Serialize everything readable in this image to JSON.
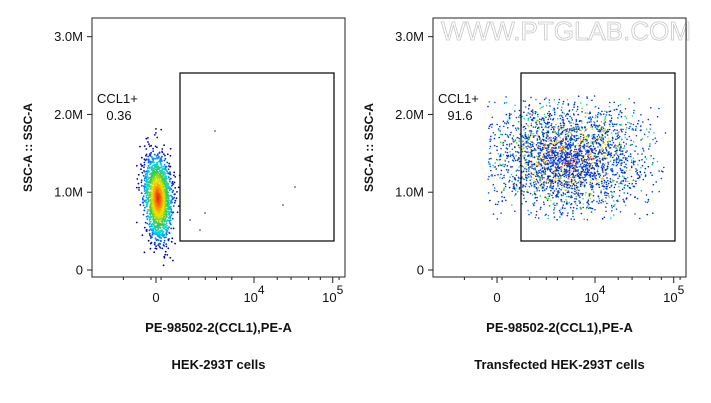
{
  "chart_data": [
    {
      "type": "scatter",
      "title": "HEK-293T cells",
      "x_label": "PE-98502-2(CCL1),PE-A",
      "y_label": "SSC-A :: SSC-A",
      "gate_label": "CCL1+",
      "gate_value": 0.36,
      "xlim": [
        -3390,
        142200
      ],
      "ylim": [
        -90000,
        3240000
      ],
      "xticks": [
        0,
        {
          "value": 10000,
          "label": "10",
          "superscript": "4"
        },
        {
          "value": 100000,
          "label": "10",
          "superscript": "5"
        }
      ],
      "yticks": [
        0,
        {
          "value": 1000000,
          "label": "1.0M"
        },
        {
          "value": 2000000,
          "label": "2.0M"
        },
        {
          "value": 3000000,
          "label": "3.0M"
        }
      ]
    },
    {
      "type": "scatter",
      "title": "Transfected HEK-293T cells",
      "x_label": "PE-98502-2(CCL1),PE-A",
      "y_label": "SSC-A :: SSC-A",
      "gate_label": "CCL1+",
      "gate_value": 91.6,
      "watermark": "WWW.PTGLAB.COM",
      "xlim": [
        -3390,
        142200
      ],
      "ylim": [
        -90000,
        3240000
      ],
      "xticks": [
        0,
        {
          "value": 10000,
          "label": "10",
          "superscript": "4"
        },
        {
          "value": 100000,
          "label": "10",
          "superscript": "5"
        }
      ],
      "yticks": [
        0,
        {
          "value": 1000000,
          "label": "1.0M"
        },
        {
          "value": 2000000,
          "label": "2.0M"
        },
        {
          "value": 3000000,
          "label": "3.0M"
        }
      ]
    }
  ]
}
